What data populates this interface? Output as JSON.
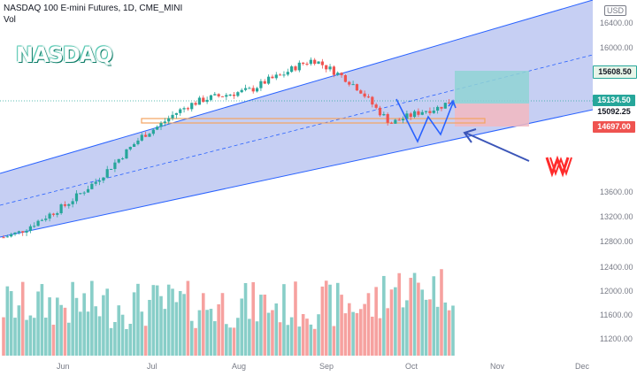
{
  "header": {
    "symbol_line": "NASDAQ 100 E-mini Futures, 1D, CME_MINI",
    "volume_label": "Vol"
  },
  "logo_text": "NASDAQ",
  "currency_badge": "USD",
  "axis": {
    "price_ticks": [
      "16400.00",
      "16000.00",
      "13600.00",
      "13200.00",
      "12800.00",
      "12400.00",
      "12000.00",
      "11600.00",
      "11200.00"
    ],
    "months": [
      "Jun",
      "Jul",
      "Aug",
      "Sep",
      "Oct",
      "Nov",
      "Dec"
    ]
  },
  "price_labels": {
    "target": "15608.50",
    "current": "15134.50",
    "support": "15092.25",
    "stop": "14697.00"
  },
  "colors": {
    "up": "#26a69a",
    "down": "#ef5350",
    "channel_fill": "#b3bfef",
    "channel_line": "#2962ff",
    "support_line": "#f4a460",
    "target_zone": "#8fd3d3",
    "stop_zone": "#f2b8c0",
    "arrow": "#3b55b8",
    "w_mark": "#ff2b2b"
  },
  "chart_data": {
    "type": "candlestick",
    "instrument": "NASDAQ 100 E-mini Futures, 1D, CME_MINI",
    "ylim": [
      11000,
      16600
    ],
    "visible_price_ticks": [
      16400,
      16000,
      13600,
      13200,
      12800,
      12400,
      12000,
      11600,
      11200
    ],
    "levels": {
      "target": 15608.5,
      "last": 15134.5,
      "support": 15092.25,
      "stop": 14697.0
    },
    "closes_trend": [
      12870,
      12950,
      13100,
      13250,
      13400,
      13600,
      13800,
      14050,
      14300,
      14550,
      14700,
      14900,
      15050,
      15150,
      15200,
      15250,
      15300,
      15450,
      15550,
      15700,
      15800,
      15650,
      15500,
      15300,
      15000,
      14750,
      14850,
      14950,
      15000,
      15134.5
    ],
    "annotation_mark": "W"
  }
}
